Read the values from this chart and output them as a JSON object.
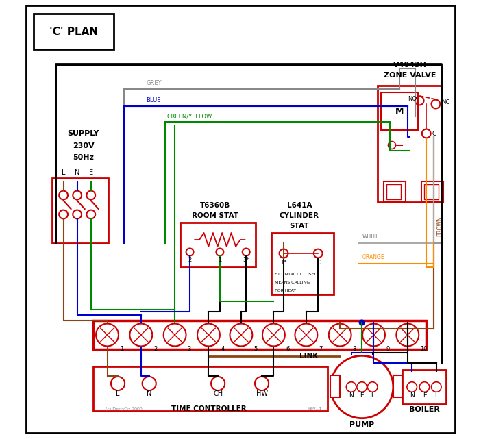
{
  "title": "'C' PLAN",
  "bg_color": "#ffffff",
  "red": "#cc0000",
  "blue": "#0000cc",
  "green": "#008800",
  "grey": "#888888",
  "brown": "#8B4513",
  "orange": "#FF8C00",
  "black": "#000000",
  "lt_red": "#ff9999",
  "terminal_numbers": [
    "1",
    "2",
    "3",
    "4",
    "5",
    "6",
    "7",
    "8",
    "9",
    "10"
  ],
  "tc_terminals": [
    "L",
    "N",
    "CH",
    "HW"
  ],
  "pump_nel": [
    "N",
    "E",
    "L"
  ],
  "boiler_nel": [
    "N",
    "E",
    "L"
  ]
}
